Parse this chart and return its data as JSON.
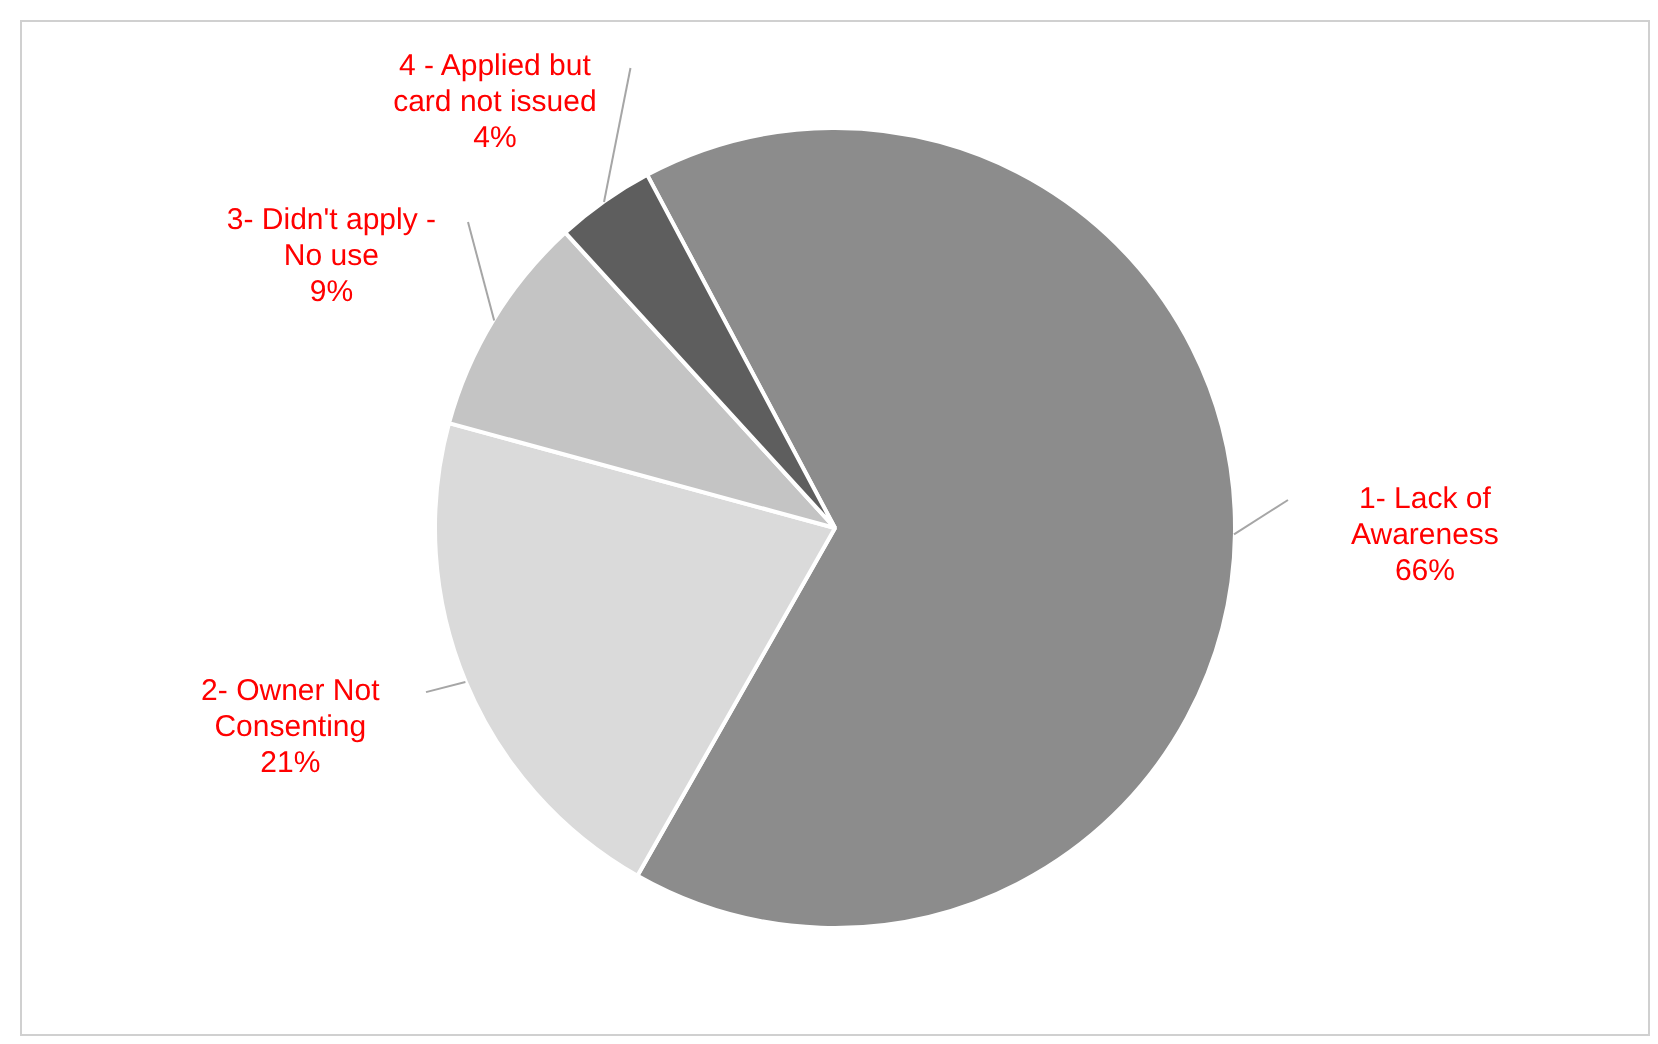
{
  "chart_data": {
    "type": "pie",
    "categories": [
      "1- Lack of Awareness",
      "2- Owner Not Consenting",
      "3- Didn't apply - No use",
      "4 - Applied but card not issued"
    ],
    "values": [
      66,
      21,
      9,
      4
    ],
    "colors": [
      "#8c8c8c",
      "#dadada",
      "#c4c4c4",
      "#5e5e5e"
    ],
    "value_labels": [
      "66%",
      "21%",
      "9%",
      "4%"
    ],
    "legend": false
  }
}
